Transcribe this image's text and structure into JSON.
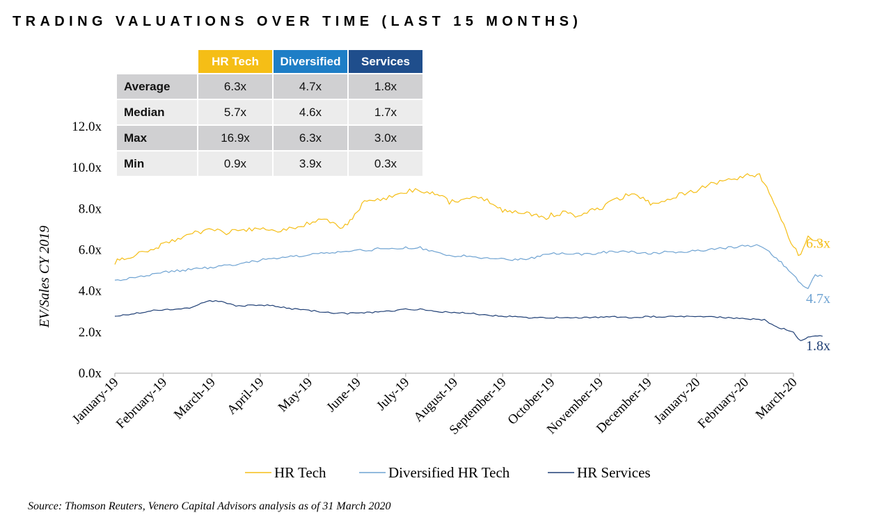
{
  "title": "TRADING VALUATIONS OVER TIME (LAST 15 MONTHS)",
  "source": "Source: Thomson Reuters, Venero Capital Advisors analysis as of 31 March 2020",
  "colors": {
    "hr_tech": "#F5BE16",
    "diversified": "#6FA3D2",
    "services": "#1F3F75"
  },
  "table": {
    "headers": [
      "HR Tech",
      "Diversified",
      "Services"
    ],
    "rows": [
      {
        "label": "Average",
        "values": [
          "6.3x",
          "4.7x",
          "1.8x"
        ]
      },
      {
        "label": "Median",
        "values": [
          "5.7x",
          "4.6x",
          "1.7x"
        ]
      },
      {
        "label": "Max",
        "values": [
          "16.9x",
          "6.3x",
          "3.0x"
        ]
      },
      {
        "label": "Min",
        "values": [
          "0.9x",
          "3.9x",
          "0.3x"
        ]
      }
    ]
  },
  "chart_data": {
    "type": "line",
    "ylabel": "EV/Sales CY 2019",
    "ylim": [
      0,
      12
    ],
    "yticks": [
      "0.0x",
      "2.0x",
      "4.0x",
      "6.0x",
      "8.0x",
      "10.0x",
      "12.0x"
    ],
    "grid": false,
    "legend_position": "bottom",
    "categories": [
      "January-19",
      "February-19",
      "March-19",
      "April-19",
      "May-19",
      "June-19",
      "July-19",
      "August-19",
      "September-19",
      "October-19",
      "November-19",
      "December-19",
      "January-20",
      "February-20",
      "March-20"
    ],
    "series": [
      {
        "name": "HR Tech",
        "end_label": "6.3x",
        "points": [
          [
            0,
            5.4
          ],
          [
            0.2,
            5.6
          ],
          [
            0.5,
            5.8
          ],
          [
            0.8,
            6.0
          ],
          [
            1.0,
            6.3
          ],
          [
            1.3,
            6.5
          ],
          [
            1.6,
            6.8
          ],
          [
            2.0,
            7.0
          ],
          [
            2.3,
            6.8
          ],
          [
            2.6,
            7.0
          ],
          [
            3.0,
            7.0
          ],
          [
            3.3,
            6.9
          ],
          [
            3.6,
            7.0
          ],
          [
            3.9,
            7.2
          ],
          [
            4.2,
            7.5
          ],
          [
            4.5,
            7.3
          ],
          [
            4.7,
            7.1
          ],
          [
            4.85,
            7.4
          ],
          [
            5.0,
            7.8
          ],
          [
            5.15,
            8.4
          ],
          [
            5.3,
            8.4
          ],
          [
            5.6,
            8.5
          ],
          [
            5.9,
            8.8
          ],
          [
            6.2,
            8.9
          ],
          [
            6.5,
            8.8
          ],
          [
            6.75,
            8.6
          ],
          [
            6.9,
            8.3
          ],
          [
            7.2,
            8.5
          ],
          [
            7.5,
            8.5
          ],
          [
            7.8,
            8.3
          ],
          [
            8.0,
            7.9
          ],
          [
            8.2,
            7.8
          ],
          [
            8.5,
            7.8
          ],
          [
            8.7,
            7.7
          ],
          [
            8.85,
            7.5
          ],
          [
            9.0,
            7.7
          ],
          [
            9.3,
            7.8
          ],
          [
            9.5,
            7.6
          ],
          [
            9.8,
            7.9
          ],
          [
            10.0,
            8.0
          ],
          [
            10.3,
            8.4
          ],
          [
            10.6,
            8.7
          ],
          [
            10.9,
            8.5
          ],
          [
            11.1,
            8.2
          ],
          [
            11.4,
            8.5
          ],
          [
            11.7,
            8.7
          ],
          [
            12.0,
            8.9
          ],
          [
            12.3,
            9.2
          ],
          [
            12.6,
            9.4
          ],
          [
            12.9,
            9.5
          ],
          [
            13.1,
            9.7
          ],
          [
            13.3,
            9.6
          ],
          [
            13.5,
            8.8
          ],
          [
            13.7,
            7.8
          ],
          [
            13.85,
            6.9
          ],
          [
            14.0,
            6.1
          ],
          [
            14.15,
            5.7
          ],
          [
            14.3,
            6.6
          ],
          [
            14.45,
            6.4
          ],
          [
            14.6,
            6.3
          ]
        ]
      },
      {
        "name": "Diversified HR Tech",
        "end_label": "4.7x",
        "points": [
          [
            0,
            4.5
          ],
          [
            0.3,
            4.6
          ],
          [
            0.6,
            4.7
          ],
          [
            1.0,
            4.9
          ],
          [
            1.4,
            5.0
          ],
          [
            1.8,
            5.1
          ],
          [
            2.2,
            5.2
          ],
          [
            2.6,
            5.3
          ],
          [
            3.0,
            5.5
          ],
          [
            3.4,
            5.6
          ],
          [
            3.8,
            5.7
          ],
          [
            4.2,
            5.8
          ],
          [
            4.6,
            5.9
          ],
          [
            5.0,
            6.0
          ],
          [
            5.3,
            6.0
          ],
          [
            5.6,
            6.1
          ],
          [
            6.0,
            6.1
          ],
          [
            6.3,
            6.1
          ],
          [
            6.6,
            5.9
          ],
          [
            6.9,
            5.7
          ],
          [
            7.2,
            5.7
          ],
          [
            7.5,
            5.6
          ],
          [
            7.8,
            5.6
          ],
          [
            8.2,
            5.5
          ],
          [
            8.6,
            5.6
          ],
          [
            9.0,
            5.8
          ],
          [
            9.4,
            5.8
          ],
          [
            9.8,
            5.8
          ],
          [
            10.2,
            5.9
          ],
          [
            10.6,
            5.9
          ],
          [
            11.0,
            5.8
          ],
          [
            11.4,
            5.9
          ],
          [
            11.8,
            5.9
          ],
          [
            12.2,
            6.0
          ],
          [
            12.6,
            6.1
          ],
          [
            13.0,
            6.2
          ],
          [
            13.3,
            6.2
          ],
          [
            13.5,
            5.9
          ],
          [
            13.7,
            5.5
          ],
          [
            13.9,
            5.0
          ],
          [
            14.1,
            4.5
          ],
          [
            14.3,
            4.1
          ],
          [
            14.45,
            4.8
          ],
          [
            14.6,
            4.7
          ]
        ]
      },
      {
        "name": "HR Services",
        "end_label": "1.8x",
        "points": [
          [
            0,
            2.75
          ],
          [
            0.4,
            2.9
          ],
          [
            0.8,
            3.05
          ],
          [
            1.2,
            3.1
          ],
          [
            1.6,
            3.2
          ],
          [
            1.9,
            3.5
          ],
          [
            2.2,
            3.5
          ],
          [
            2.5,
            3.25
          ],
          [
            2.8,
            3.3
          ],
          [
            3.2,
            3.3
          ],
          [
            3.6,
            3.15
          ],
          [
            4.0,
            3.05
          ],
          [
            4.4,
            2.95
          ],
          [
            4.8,
            2.9
          ],
          [
            5.2,
            2.95
          ],
          [
            5.6,
            3.0
          ],
          [
            6.0,
            3.1
          ],
          [
            6.3,
            3.1
          ],
          [
            6.7,
            3.0
          ],
          [
            7.0,
            2.95
          ],
          [
            7.4,
            2.9
          ],
          [
            7.8,
            2.8
          ],
          [
            8.2,
            2.75
          ],
          [
            8.6,
            2.7
          ],
          [
            9.0,
            2.7
          ],
          [
            9.4,
            2.7
          ],
          [
            9.8,
            2.7
          ],
          [
            10.2,
            2.75
          ],
          [
            10.6,
            2.7
          ],
          [
            11.0,
            2.75
          ],
          [
            11.4,
            2.75
          ],
          [
            11.8,
            2.75
          ],
          [
            12.2,
            2.75
          ],
          [
            12.6,
            2.7
          ],
          [
            13.0,
            2.65
          ],
          [
            13.4,
            2.6
          ],
          [
            13.6,
            2.3
          ],
          [
            13.8,
            2.15
          ],
          [
            14.0,
            2.0
          ],
          [
            14.15,
            1.55
          ],
          [
            14.3,
            1.75
          ],
          [
            14.45,
            1.8
          ],
          [
            14.6,
            1.8
          ]
        ]
      }
    ]
  }
}
